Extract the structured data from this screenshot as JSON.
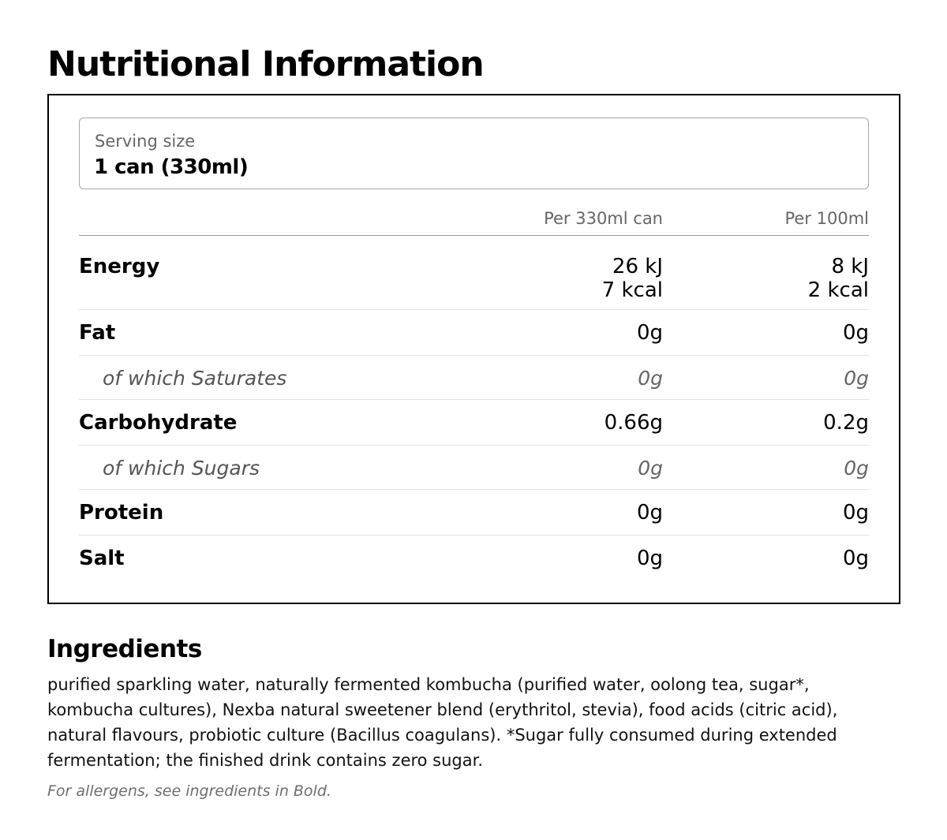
{
  "title": "Nutritional Information",
  "serving": {
    "label": "Serving size",
    "value": "1 can (330ml)"
  },
  "columns": {
    "per_can": "Per 330ml can",
    "per_100ml": "Per 100ml"
  },
  "rows": {
    "energy": {
      "label": "Energy",
      "per_can_kj": "26 kJ",
      "per_can_kcal": "7 kcal",
      "per_100ml_kj": "8 kJ",
      "per_100ml_kcal": "2 kcal"
    },
    "fat": {
      "label": "Fat",
      "per_can": "0g",
      "per_100ml": "0g"
    },
    "saturates": {
      "label": "of which Saturates",
      "per_can": "0g",
      "per_100ml": "0g"
    },
    "carbohydrate": {
      "label": "Carbohydrate",
      "per_can": "0.66g",
      "per_100ml": "0.2g"
    },
    "sugars": {
      "label": "of which Sugars",
      "per_can": "0g",
      "per_100ml": "0g"
    },
    "protein": {
      "label": "Protein",
      "per_can": "0g",
      "per_100ml": "0g"
    },
    "salt": {
      "label": "Salt",
      "per_can": "0g",
      "per_100ml": "0g"
    }
  },
  "ingredients": {
    "title": "Ingredients",
    "text": "purified sparkling water, naturally fermented kombucha (purified water, oolong tea, sugar*, kombucha cultures), Nexba natural sweetener blend (erythritol, stevia), food acids (citric acid), natural flavours, probiotic culture (Bacillus coagulans). *Sugar fully consumed during extended fermentation; the finished drink contains zero sugar.",
    "allergen_note": "For allergens, see ingredients in Bold."
  }
}
